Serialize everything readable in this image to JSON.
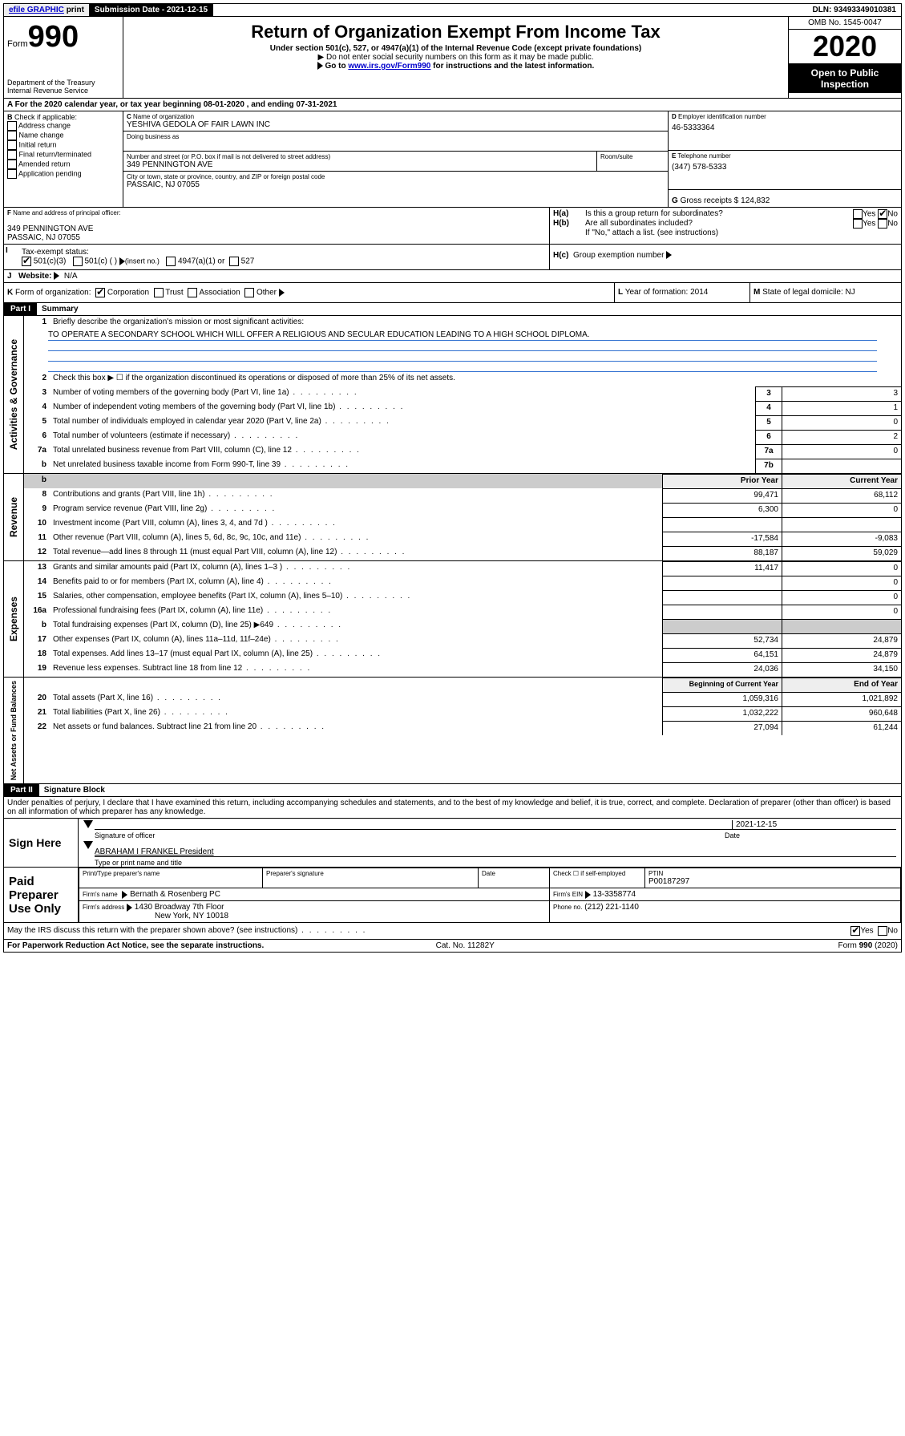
{
  "topbar": {
    "efile": "efile GRAPHIC",
    "print": "print",
    "submission_label": "Submission Date - 2021-12-15",
    "dln": "DLN: 93493349010381"
  },
  "header": {
    "form_prefix": "Form",
    "form_number": "990",
    "dept": "Department of the Treasury\nInternal Revenue Service",
    "title": "Return of Organization Exempt From Income Tax",
    "subtitle": "Under section 501(c), 527, or 4947(a)(1) of the Internal Revenue Code (except private foundations)",
    "note1": "Do not enter social security numbers on this form as it may be made public.",
    "note2_pre": "Go to ",
    "note2_link": "www.irs.gov/Form990",
    "note2_post": " for instructions and the latest information.",
    "omb": "OMB No. 1545-0047",
    "year": "2020",
    "open": "Open to Public Inspection"
  },
  "A": {
    "text": "For the 2020 calendar year, or tax year beginning 08-01-2020    , and ending 07-31-2021"
  },
  "B": {
    "label": "Check if applicable:",
    "items": [
      "Address change",
      "Name change",
      "Initial return",
      "Final return/terminated",
      "Amended return",
      "Application pending"
    ]
  },
  "C": {
    "name_label": "Name of organization",
    "name": "YESHIVA GEDOLA OF FAIR LAWN INC",
    "dba_label": "Doing business as",
    "addr_label": "Number and street (or P.O. box if mail is not delivered to street address)",
    "room_label": "Room/suite",
    "addr": "349 PENNINGTON AVE",
    "city_label": "City or town, state or province, country, and ZIP or foreign postal code",
    "city": "PASSAIC, NJ  07055"
  },
  "D": {
    "label": "Employer identification number",
    "value": "46-5333364"
  },
  "E": {
    "label": "Telephone number",
    "value": "(347) 578-5333"
  },
  "G": {
    "label": "Gross receipts $",
    "value": "124,832"
  },
  "F": {
    "label": "Name and address of principal officer:",
    "addr1": "349 PENNINGTON AVE",
    "addr2": "PASSAIC, NJ  07055"
  },
  "H": {
    "a": "Is this a group return for subordinates?",
    "b": "Are all subordinates included?",
    "b_note": "If \"No,\" attach a list. (see instructions)",
    "c": "Group exemption number",
    "yes": "Yes",
    "no": "No"
  },
  "I": {
    "label": "Tax-exempt status:",
    "opt1": "501(c)(3)",
    "opt2": "501(c) (   )",
    "opt2_note": "(insert no.)",
    "opt3": "4947(a)(1) or",
    "opt4": "527"
  },
  "J": {
    "label": "Website:",
    "value": "N/A"
  },
  "K": {
    "label": "Form of organization:",
    "opts": [
      "Corporation",
      "Trust",
      "Association",
      "Other"
    ]
  },
  "L": {
    "label": "Year of formation:",
    "value": "2014"
  },
  "M": {
    "label": "State of legal domicile:",
    "value": "NJ"
  },
  "partI": {
    "header": "Part I",
    "title": "Summary",
    "q1": "Briefly describe the organization's mission or most significant activities:",
    "mission": "TO OPERATE A SECONDARY SCHOOL WHICH WILL OFFER A RELIGIOUS AND SECULAR EDUCATION LEADING TO A HIGH SCHOOL DIPLOMA.",
    "q2": "Check this box ▶ ☐  if the organization discontinued its operations or disposed of more than 25% of its net assets.",
    "lines_gov": [
      {
        "n": "3",
        "d": "Number of voting members of the governing body (Part VI, line 1a)",
        "b": "3",
        "v": "3"
      },
      {
        "n": "4",
        "d": "Number of independent voting members of the governing body (Part VI, line 1b)",
        "b": "4",
        "v": "1"
      },
      {
        "n": "5",
        "d": "Total number of individuals employed in calendar year 2020 (Part V, line 2a)",
        "b": "5",
        "v": "0"
      },
      {
        "n": "6",
        "d": "Total number of volunteers (estimate if necessary)",
        "b": "6",
        "v": "2"
      },
      {
        "n": "7a",
        "d": "Total unrelated business revenue from Part VIII, column (C), line 12",
        "b": "7a",
        "v": "0"
      },
      {
        "n": "b",
        "d": "Net unrelated business taxable income from Form 990-T, line 39",
        "b": "7b",
        "v": ""
      }
    ],
    "col_prior": "Prior Year",
    "col_current": "Current Year",
    "lines_rev": [
      {
        "n": "8",
        "d": "Contributions and grants (Part VIII, line 1h)",
        "p": "99,471",
        "c": "68,112"
      },
      {
        "n": "9",
        "d": "Program service revenue (Part VIII, line 2g)",
        "p": "6,300",
        "c": "0"
      },
      {
        "n": "10",
        "d": "Investment income (Part VIII, column (A), lines 3, 4, and 7d )",
        "p": "",
        "c": ""
      },
      {
        "n": "11",
        "d": "Other revenue (Part VIII, column (A), lines 5, 6d, 8c, 9c, 10c, and 11e)",
        "p": "-17,584",
        "c": "-9,083"
      },
      {
        "n": "12",
        "d": "Total revenue—add lines 8 through 11 (must equal Part VIII, column (A), line 12)",
        "p": "88,187",
        "c": "59,029"
      }
    ],
    "lines_exp": [
      {
        "n": "13",
        "d": "Grants and similar amounts paid (Part IX, column (A), lines 1–3 )",
        "p": "11,417",
        "c": "0"
      },
      {
        "n": "14",
        "d": "Benefits paid to or for members (Part IX, column (A), line 4)",
        "p": "",
        "c": "0"
      },
      {
        "n": "15",
        "d": "Salaries, other compensation, employee benefits (Part IX, column (A), lines 5–10)",
        "p": "",
        "c": "0"
      },
      {
        "n": "16a",
        "d": "Professional fundraising fees (Part IX, column (A), line 11e)",
        "p": "",
        "c": "0"
      },
      {
        "n": "b",
        "d": "Total fundraising expenses (Part IX, column (D), line 25) ▶649",
        "p": "GRAY",
        "c": "GRAY"
      },
      {
        "n": "17",
        "d": "Other expenses (Part IX, column (A), lines 11a–11d, 11f–24e)",
        "p": "52,734",
        "c": "24,879"
      },
      {
        "n": "18",
        "d": "Total expenses. Add lines 13–17 (must equal Part IX, column (A), line 25)",
        "p": "64,151",
        "c": "24,879"
      },
      {
        "n": "19",
        "d": "Revenue less expenses. Subtract line 18 from line 12",
        "p": "24,036",
        "c": "34,150"
      }
    ],
    "col_begin": "Beginning of Current Year",
    "col_end": "End of Year",
    "lines_net": [
      {
        "n": "20",
        "d": "Total assets (Part X, line 16)",
        "p": "1,059,316",
        "c": "1,021,892"
      },
      {
        "n": "21",
        "d": "Total liabilities (Part X, line 26)",
        "p": "1,032,222",
        "c": "960,648"
      },
      {
        "n": "22",
        "d": "Net assets or fund balances. Subtract line 21 from line 20",
        "p": "27,094",
        "c": "61,244"
      }
    ],
    "side_gov": "Activities & Governance",
    "side_rev": "Revenue",
    "side_exp": "Expenses",
    "side_net": "Net Assets or Fund Balances"
  },
  "partII": {
    "header": "Part II",
    "title": "Signature Block",
    "perjury": "Under penalties of perjury, I declare that I have examined this return, including accompanying schedules and statements, and to the best of my knowledge and belief, it is true, correct, and complete. Declaration of preparer (other than officer) is based on all information of which preparer has any knowledge.",
    "sign_here": "Sign Here",
    "sig_officer": "Signature of officer",
    "date": "Date",
    "date_val": "2021-12-15",
    "officer_name": "ABRAHAM I FRANKEL President",
    "type_name": "Type or print name and title",
    "paid": "Paid Preparer Use Only",
    "prep_name": "Print/Type preparer's name",
    "prep_sig": "Preparer's signature",
    "prep_date": "Date",
    "check_self": "Check ☐ if self-employed",
    "ptin_label": "PTIN",
    "ptin": "P00187297",
    "firm_name_label": "Firm's name",
    "firm_name": "Bernath & Rosenberg PC",
    "firm_ein_label": "Firm's EIN",
    "firm_ein": "13-3358774",
    "firm_addr_label": "Firm's address",
    "firm_addr1": "1430 Broadway 7th Floor",
    "firm_addr2": "New York, NY  10018",
    "phone_label": "Phone no.",
    "phone": "(212) 221-1140",
    "discuss": "May the IRS discuss this return with the preparer shown above? (see instructions)",
    "paperwork": "For Paperwork Reduction Act Notice, see the separate instructions.",
    "cat": "Cat. No. 11282Y",
    "formfoot": "Form 990 (2020)"
  }
}
